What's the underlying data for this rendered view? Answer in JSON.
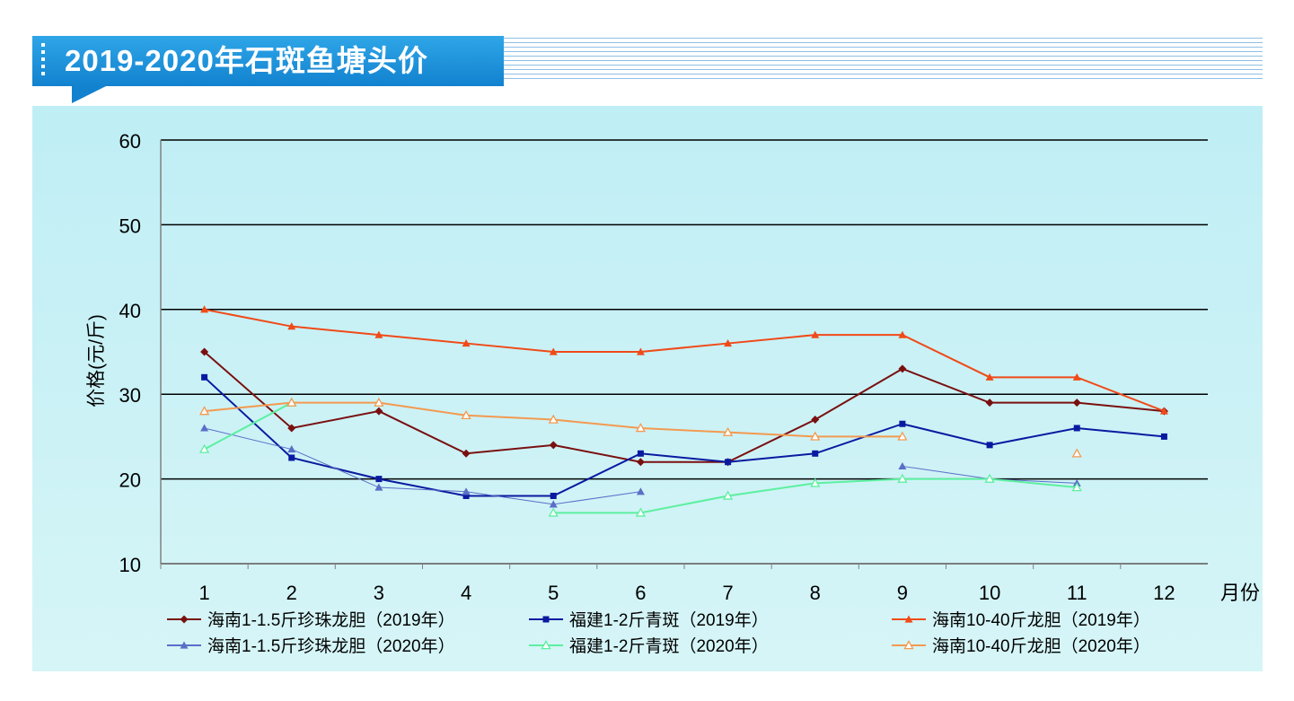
{
  "header": {
    "title": "2019-2020年石斑鱼塘头价"
  },
  "colors": {
    "banner": "#1a8fd8",
    "panel": "#c8f0f5",
    "grid": "#000000"
  },
  "chart_data": {
    "type": "line",
    "title": "2019-2020年石斑鱼塘头价",
    "xlabel": "月份",
    "ylabel": "价格(元/斤)",
    "ylim": [
      10,
      60
    ],
    "yticks": [
      "10",
      "20",
      "30",
      "40",
      "50",
      "60"
    ],
    "x": [
      1,
      2,
      3,
      4,
      5,
      6,
      7,
      8,
      9,
      10,
      11,
      12
    ],
    "xticks": [
      "1",
      "2",
      "3",
      "4",
      "5",
      "6",
      "7",
      "8",
      "9",
      "10",
      "11",
      "12"
    ],
    "legend_position": "bottom",
    "series": [
      {
        "name": "海南1-1.5斤珍珠龙胆（2019年）",
        "color": "#7a1010",
        "marker": "diamond",
        "values": [
          35,
          26,
          28,
          23,
          24,
          22,
          22,
          27,
          33,
          29,
          29,
          28
        ]
      },
      {
        "name": "福建1-2斤青斑（2019年）",
        "color": "#0a1aa0",
        "marker": "square",
        "values": [
          32,
          22.5,
          20,
          18,
          18,
          23,
          22,
          23,
          26.5,
          24,
          26,
          25
        ]
      },
      {
        "name": "海南10-40斤龙胆（2019年）",
        "color": "#f04a18",
        "marker": "triangle",
        "values": [
          40,
          38,
          37,
          36,
          35,
          35,
          36,
          37,
          37,
          32,
          32,
          28
        ]
      },
      {
        "name": "海南1-1.5斤珍珠龙胆（2020年）",
        "color": "#5a6ec8",
        "marker": "triangle",
        "values": [
          26,
          23.5,
          19,
          18.5,
          17,
          18.5,
          null,
          null,
          21.5,
          20,
          19.5,
          null
        ]
      },
      {
        "name": "福建1-2斤青斑（2020年）",
        "color": "#5cf0a0",
        "marker": "triangle-open",
        "values": [
          23.5,
          29,
          null,
          null,
          16,
          16,
          18,
          19.5,
          20,
          20,
          19,
          null
        ]
      },
      {
        "name": "海南10-40斤龙胆（2020年）",
        "color": "#f39a50",
        "marker": "triangle-open",
        "values": [
          28,
          29,
          29,
          27.5,
          27,
          26,
          25.5,
          25,
          25,
          null,
          23,
          null
        ]
      }
    ]
  }
}
